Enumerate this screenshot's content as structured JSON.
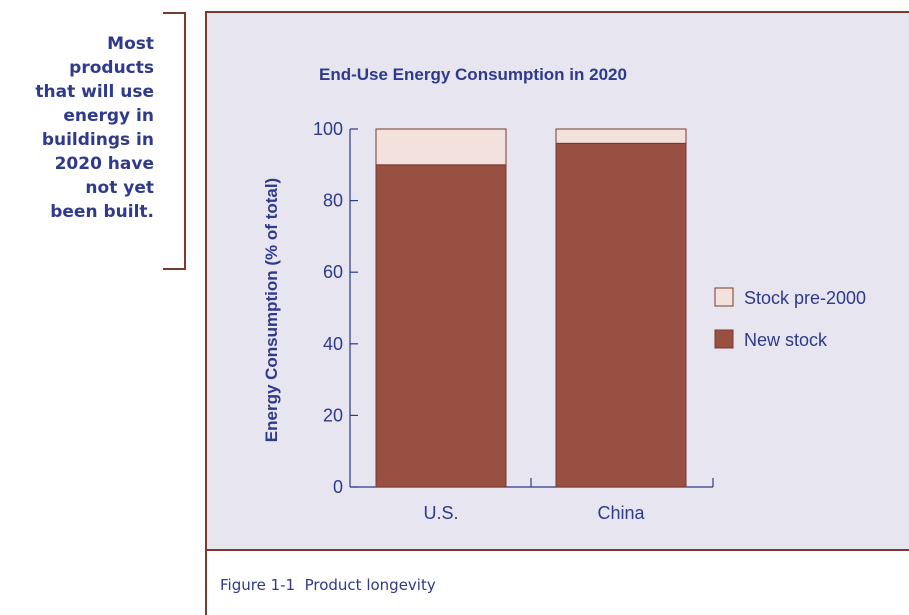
{
  "callout": {
    "lines": [
      "Most",
      "products",
      "that will use",
      "energy in",
      "buildings in",
      "2020 have",
      "not yet",
      "been built."
    ]
  },
  "figure": {
    "caption": "Figure 1-1  Product longevity"
  },
  "colors": {
    "new_stock": "#975042",
    "stock_pre_2000": "#f2e1dd",
    "bar_outline": "#7a3a2e",
    "axis": "#2e3a8c",
    "panel_background": "#e7e5f0",
    "frame": "#7a3a2e"
  },
  "chart_data": {
    "type": "bar",
    "stacked": true,
    "title": "End-Use Energy Consumption in 2020",
    "xlabel": "",
    "ylabel": "Energy Consumption (% of total)",
    "categories": [
      "U.S.",
      "China"
    ],
    "series": [
      {
        "name": "New stock",
        "values": [
          90,
          96
        ],
        "color": "#975042"
      },
      {
        "name": "Stock pre-2000",
        "values": [
          10,
          4
        ],
        "color": "#f2e1dd"
      }
    ],
    "ylim": [
      0,
      100
    ],
    "yticks": [
      0,
      20,
      40,
      60,
      80,
      100
    ],
    "legend": {
      "position": "right",
      "entries": [
        "Stock pre-2000",
        "New stock"
      ]
    },
    "grid": false
  }
}
